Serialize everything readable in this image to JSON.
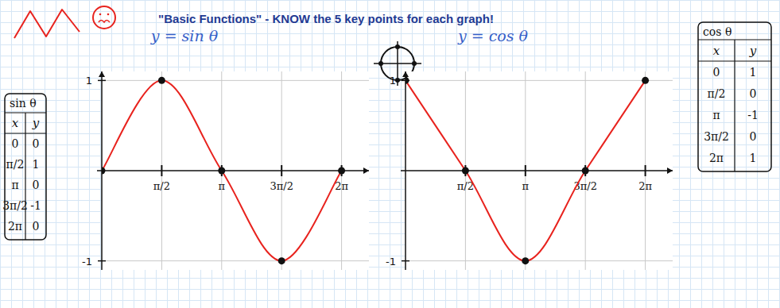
{
  "title": "\"Basic Functions\" - KNOW the 5 key points for each graph!",
  "chart_data": [
    {
      "type": "line",
      "title": "y = sin θ",
      "x": [
        0,
        1.5708,
        3.1416,
        4.7124,
        6.2832
      ],
      "values": [
        0,
        1,
        0,
        -1,
        0
      ],
      "color": "#e8231e",
      "marker": "circle",
      "grid": true,
      "xlim": [
        0,
        7.0
      ],
      "ylim": [
        -1.1,
        1.1
      ],
      "xticks": [
        {
          "value": 1.5708,
          "label": "π/2"
        },
        {
          "value": 3.1416,
          "label": "π"
        },
        {
          "value": 4.7124,
          "label": "3π/2"
        },
        {
          "value": 6.2832,
          "label": "2π"
        }
      ],
      "yticks": [
        -1,
        1
      ],
      "table": {
        "title": "sin θ",
        "columns": [
          "x",
          "y"
        ],
        "rows": [
          [
            "0",
            "0"
          ],
          [
            "π/2",
            "1"
          ],
          [
            "π",
            "0"
          ],
          [
            "3π/2",
            "-1"
          ],
          [
            "2π",
            "0"
          ]
        ]
      }
    },
    {
      "type": "line",
      "title": "y = cos θ",
      "x": [
        0,
        1.5708,
        3.1416,
        4.7124,
        6.2832
      ],
      "values": [
        1,
        0,
        -1,
        0,
        1
      ],
      "color": "#e8231e",
      "marker": "circle",
      "grid": true,
      "xlim": [
        0,
        7.0
      ],
      "ylim": [
        -1.1,
        1.1
      ],
      "xticks": [
        {
          "value": 1.5708,
          "label": "π/2"
        },
        {
          "value": 3.1416,
          "label": "π"
        },
        {
          "value": 4.7124,
          "label": "3π/2"
        },
        {
          "value": 6.2832,
          "label": "2π"
        }
      ],
      "yticks": [
        -1,
        1
      ],
      "table": {
        "title": "cos θ",
        "columns": [
          "x",
          "y"
        ],
        "rows": [
          [
            "0",
            "1"
          ],
          [
            "π/2",
            "0"
          ],
          [
            "π",
            "-1"
          ],
          [
            "3π/2",
            "0"
          ],
          [
            "2π",
            "1"
          ]
        ]
      }
    }
  ]
}
